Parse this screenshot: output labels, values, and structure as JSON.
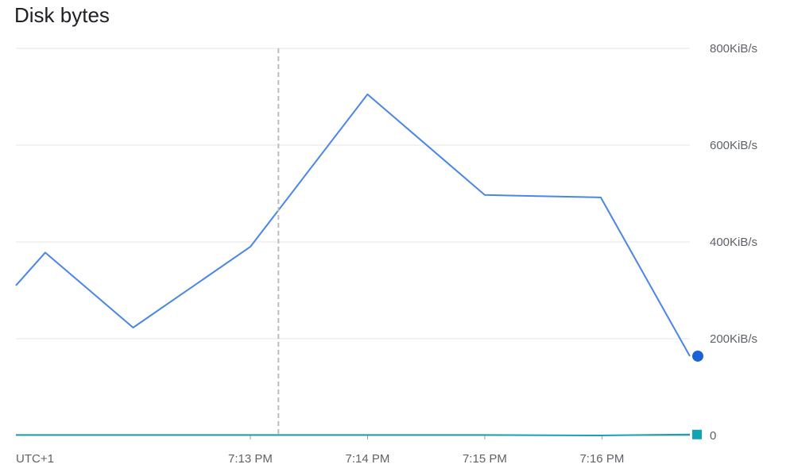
{
  "chart_data": {
    "type": "line",
    "title": "Disk bytes",
    "xlabel": "",
    "ylabel": "",
    "timezone_label": "UTC+1",
    "x_ticks": [
      "7:13 PM",
      "7:14 PM",
      "7:15 PM",
      "7:16 PM"
    ],
    "x_tick_minutes": [
      13,
      14,
      15,
      16
    ],
    "y_ticks": [
      "0",
      "200KiB/s",
      "400KiB/s",
      "600KiB/s",
      "800KiB/s"
    ],
    "y_tick_values": [
      0,
      200,
      400,
      600,
      800
    ],
    "ylim": [
      0,
      800
    ],
    "xlim_minutes": [
      11.0,
      16.75
    ],
    "hover_line_minute": 13.24,
    "grid": true,
    "series": [
      {
        "color": "#4a86e8",
        "marker": "circle",
        "marker_color": "#1a62d6",
        "minutes": [
          11.0,
          11.25,
          12.0,
          13.0,
          14.0,
          15.0,
          15.99,
          16.75
        ],
        "values": [
          310,
          378,
          223,
          390,
          705,
          497,
          492,
          164
        ]
      },
      {
        "color": "#1a9fb0",
        "marker": "square",
        "marker_color": "#12a4b4",
        "minutes": [
          11.0,
          12.0,
          13.0,
          14.0,
          15.0,
          15.99,
          16.75
        ],
        "values": [
          1,
          1,
          1,
          1,
          1,
          0,
          2
        ]
      }
    ]
  }
}
